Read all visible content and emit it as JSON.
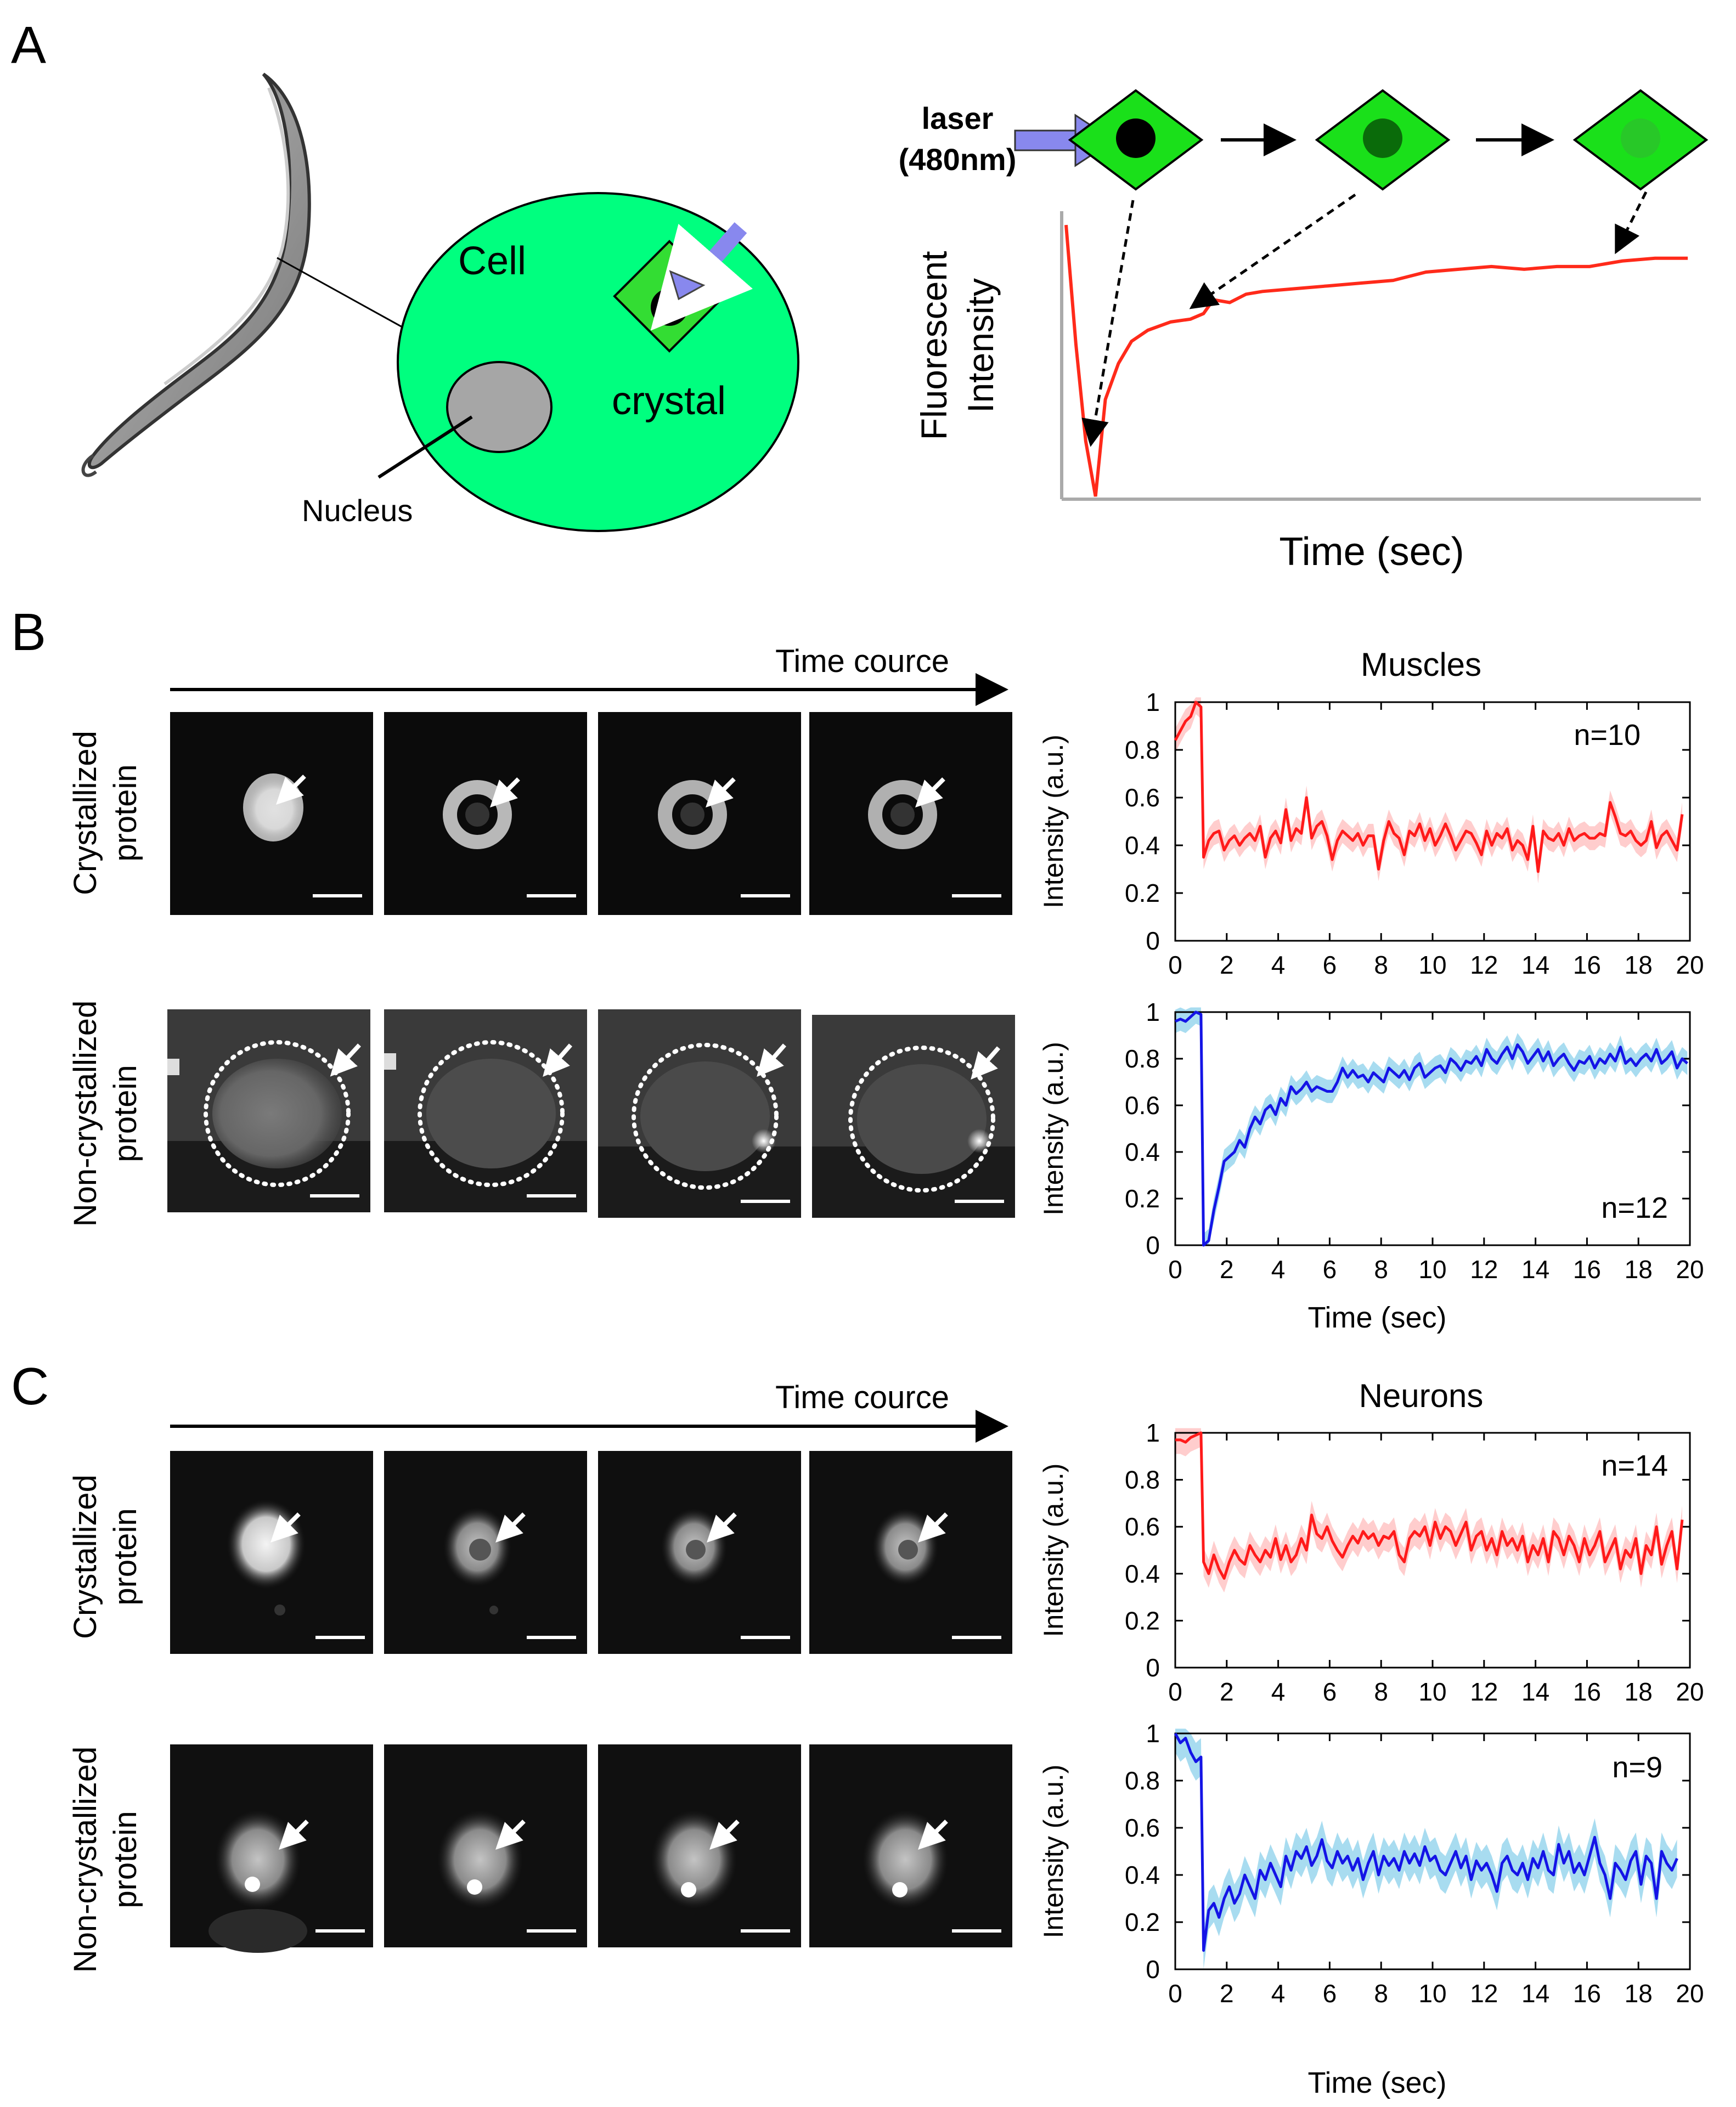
{
  "panel_labels": {
    "a": "A",
    "b": "B",
    "c": "C"
  },
  "panelA": {
    "cell_label": "Cell",
    "crystal_label": "crystal",
    "nucleus_label": "Nucleus",
    "laser_line1": "laser",
    "laser_line2": "(480nm)",
    "ylabel_line1": "Fluorescent",
    "ylabel_line2": "Intensity",
    "xlabel": "Time (sec)",
    "colors": {
      "cell": "#00ff7f",
      "crystal": "#33dd33",
      "dot": "#000000",
      "laser": "#8888ee",
      "nucleus": "#a6a6a6",
      "curve": "#ff2a1a"
    }
  },
  "panelB": {
    "time_course": "Time cource",
    "title": "Muscles",
    "row1_label_line1": "Crystallized",
    "row1_label_line2": "protein",
    "row2_label_line1": "Non-crystallized",
    "row2_label_line2": "protein",
    "xlabel": "Time (sec)"
  },
  "panelC": {
    "time_course": "Time cource",
    "title": "Neurons",
    "row1_label_line1": "Crystallized",
    "row1_label_line2": "protein",
    "row2_label_line1": "Non-crystallized",
    "row2_label_line2": "protein",
    "xlabel": "Time (sec)"
  },
  "chart_data": [
    {
      "id": "A-schematic",
      "type": "line",
      "title": "",
      "xlabel": "Time (sec)",
      "ylabel": "Fluorescent Intensity",
      "x": [
        0,
        0.3,
        0.6,
        0.9,
        1.2,
        1.6,
        2.0,
        2.5,
        3.2,
        3.8,
        4.2,
        4.5,
        5.0,
        5.5,
        6.0,
        7.0,
        8.0,
        9.0,
        10.0,
        11.0,
        12.0,
        13.0,
        14.0,
        15.0,
        16.0,
        17.0,
        18.0,
        19.0
      ],
      "y": [
        0.98,
        0.55,
        0.2,
        0.0,
        0.35,
        0.48,
        0.56,
        0.6,
        0.63,
        0.64,
        0.66,
        0.71,
        0.7,
        0.73,
        0.74,
        0.75,
        0.76,
        0.77,
        0.78,
        0.81,
        0.82,
        0.83,
        0.82,
        0.83,
        0.83,
        0.85,
        0.86,
        0.86
      ],
      "color": "#ff2a1a"
    },
    {
      "id": "B-muscles-crystallized",
      "type": "line",
      "title": "Muscles",
      "ylabel": "Intensity (a.u.)",
      "xlabel": "",
      "xlim": [
        0,
        20
      ],
      "ylim": [
        0,
        1
      ],
      "xticks": [
        "0",
        "2",
        "4",
        "6",
        "8",
        "10",
        "12",
        "14",
        "16",
        "18",
        "20"
      ],
      "yticks": [
        "0",
        "0.2",
        "0.4",
        "0.6",
        "0.8",
        "1"
      ],
      "n_label": "n=10",
      "color": "#ff1a1a",
      "band_color": "#ffc8c8",
      "x": [
        0,
        0.2,
        0.4,
        0.6,
        0.8,
        1.0,
        1.1,
        1.3,
        1.5,
        1.7,
        1.9,
        2.1,
        2.3,
        2.5,
        2.7,
        2.9,
        3.1,
        3.3,
        3.5,
        3.7,
        3.9,
        4.1,
        4.3,
        4.5,
        4.7,
        4.9,
        5.1,
        5.3,
        5.5,
        5.7,
        5.9,
        6.1,
        6.3,
        6.5,
        6.7,
        6.9,
        7.1,
        7.3,
        7.5,
        7.7,
        7.9,
        8.1,
        8.3,
        8.5,
        8.7,
        8.9,
        9.1,
        9.3,
        9.5,
        9.7,
        9.9,
        10.1,
        10.3,
        10.5,
        10.7,
        10.9,
        11.1,
        11.3,
        11.5,
        11.7,
        11.9,
        12.1,
        12.3,
        12.5,
        12.7,
        12.9,
        13.1,
        13.3,
        13.5,
        13.7,
        13.9,
        14.1,
        14.3,
        14.5,
        14.7,
        14.9,
        15.1,
        15.3,
        15.5,
        15.7,
        15.9,
        16.1,
        16.3,
        16.5,
        16.7,
        16.9,
        17.1,
        17.3,
        17.5,
        17.7,
        17.9,
        18.1,
        18.3,
        18.5,
        18.7,
        18.9,
        19.1,
        19.3,
        19.5,
        19.7
      ],
      "y": [
        0.84,
        0.88,
        0.92,
        0.94,
        1.0,
        0.98,
        0.35,
        0.42,
        0.45,
        0.46,
        0.38,
        0.42,
        0.44,
        0.4,
        0.43,
        0.45,
        0.42,
        0.48,
        0.35,
        0.43,
        0.46,
        0.41,
        0.55,
        0.42,
        0.47,
        0.45,
        0.6,
        0.43,
        0.48,
        0.5,
        0.44,
        0.34,
        0.42,
        0.46,
        0.44,
        0.42,
        0.45,
        0.4,
        0.44,
        0.44,
        0.3,
        0.42,
        0.5,
        0.45,
        0.43,
        0.36,
        0.46,
        0.44,
        0.49,
        0.42,
        0.47,
        0.4,
        0.44,
        0.49,
        0.44,
        0.38,
        0.42,
        0.46,
        0.45,
        0.41,
        0.36,
        0.46,
        0.4,
        0.45,
        0.43,
        0.47,
        0.38,
        0.42,
        0.4,
        0.34,
        0.48,
        0.29,
        0.46,
        0.43,
        0.42,
        0.45,
        0.4,
        0.47,
        0.42,
        0.44,
        0.45,
        0.43,
        0.43,
        0.45,
        0.44,
        0.58,
        0.52,
        0.45,
        0.44,
        0.46,
        0.42,
        0.4,
        0.42,
        0.5,
        0.39,
        0.44,
        0.46,
        0.42,
        0.38,
        0.53
      ],
      "band": 0.05
    },
    {
      "id": "B-muscles-noncrystallized",
      "type": "line",
      "title": "",
      "ylabel": "Intensity (a.u.)",
      "xlabel": "Time (sec)",
      "xlim": [
        0,
        20
      ],
      "ylim": [
        0,
        1
      ],
      "xticks": [
        "0",
        "2",
        "4",
        "6",
        "8",
        "10",
        "12",
        "14",
        "16",
        "18",
        "20"
      ],
      "yticks": [
        "0",
        "0.2",
        "0.4",
        "0.6",
        "0.8",
        "1"
      ],
      "n_label": "n=12",
      "color": "#1414e6",
      "band_color": "#9ed8ee",
      "x": [
        0,
        0.2,
        0.4,
        0.6,
        0.8,
        1.0,
        1.1,
        1.3,
        1.5,
        1.7,
        1.9,
        2.1,
        2.3,
        2.5,
        2.7,
        2.9,
        3.1,
        3.3,
        3.5,
        3.7,
        3.9,
        4.1,
        4.3,
        4.5,
        4.7,
        4.9,
        5.1,
        5.3,
        5.5,
        5.7,
        5.9,
        6.1,
        6.3,
        6.5,
        6.7,
        6.9,
        7.1,
        7.3,
        7.5,
        7.7,
        7.9,
        8.1,
        8.3,
        8.5,
        8.7,
        8.9,
        9.1,
        9.3,
        9.5,
        9.7,
        9.9,
        10.1,
        10.3,
        10.5,
        10.7,
        10.9,
        11.1,
        11.3,
        11.5,
        11.7,
        11.9,
        12.1,
        12.3,
        12.5,
        12.7,
        12.9,
        13.1,
        13.3,
        13.5,
        13.7,
        13.9,
        14.1,
        14.3,
        14.5,
        14.7,
        14.9,
        15.1,
        15.3,
        15.5,
        15.7,
        15.9,
        16.1,
        16.3,
        16.5,
        16.7,
        16.9,
        17.1,
        17.3,
        17.5,
        17.7,
        17.9,
        18.1,
        18.3,
        18.5,
        18.7,
        18.9,
        19.1,
        19.3,
        19.5,
        19.7,
        19.9
      ],
      "y": [
        0.96,
        0.97,
        0.96,
        0.98,
        1.0,
        0.99,
        0.0,
        0.02,
        0.15,
        0.25,
        0.36,
        0.38,
        0.4,
        0.45,
        0.42,
        0.5,
        0.55,
        0.52,
        0.58,
        0.6,
        0.56,
        0.63,
        0.6,
        0.68,
        0.65,
        0.67,
        0.7,
        0.66,
        0.68,
        0.67,
        0.66,
        0.66,
        0.7,
        0.76,
        0.72,
        0.75,
        0.72,
        0.73,
        0.7,
        0.74,
        0.72,
        0.7,
        0.76,
        0.74,
        0.72,
        0.75,
        0.71,
        0.76,
        0.78,
        0.72,
        0.74,
        0.76,
        0.77,
        0.74,
        0.8,
        0.78,
        0.75,
        0.79,
        0.78,
        0.81,
        0.77,
        0.84,
        0.8,
        0.78,
        0.82,
        0.85,
        0.8,
        0.86,
        0.83,
        0.78,
        0.81,
        0.84,
        0.79,
        0.83,
        0.77,
        0.8,
        0.82,
        0.78,
        0.75,
        0.79,
        0.78,
        0.81,
        0.76,
        0.8,
        0.78,
        0.82,
        0.79,
        0.85,
        0.78,
        0.8,
        0.77,
        0.8,
        0.82,
        0.79,
        0.84,
        0.78,
        0.8,
        0.83,
        0.76,
        0.8,
        0.78
      ],
      "band": 0.05
    },
    {
      "id": "C-neurons-crystallized",
      "type": "line",
      "title": "Neurons",
      "ylabel": "Intensity (a.u.)",
      "xlabel": "",
      "xlim": [
        0,
        20
      ],
      "ylim": [
        0,
        1
      ],
      "xticks": [
        "0",
        "2",
        "4",
        "6",
        "8",
        "10",
        "12",
        "14",
        "16",
        "18",
        "20"
      ],
      "yticks": [
        "0",
        "0.2",
        "0.4",
        "0.6",
        "0.8",
        "1"
      ],
      "n_label": "n=14",
      "color": "#ff1a1a",
      "band_color": "#ffc8c8",
      "x": [
        0,
        0.2,
        0.4,
        0.6,
        0.8,
        1.0,
        1.1,
        1.3,
        1.5,
        1.7,
        1.9,
        2.1,
        2.3,
        2.5,
        2.7,
        2.9,
        3.1,
        3.3,
        3.5,
        3.7,
        3.9,
        4.1,
        4.3,
        4.5,
        4.7,
        4.9,
        5.1,
        5.3,
        5.5,
        5.7,
        5.9,
        6.1,
        6.3,
        6.5,
        6.7,
        6.9,
        7.1,
        7.3,
        7.5,
        7.7,
        7.9,
        8.1,
        8.3,
        8.5,
        8.7,
        8.9,
        9.1,
        9.3,
        9.5,
        9.7,
        9.9,
        10.1,
        10.3,
        10.5,
        10.7,
        10.9,
        11.1,
        11.3,
        11.5,
        11.7,
        11.9,
        12.1,
        12.3,
        12.5,
        12.7,
        12.9,
        13.1,
        13.3,
        13.5,
        13.7,
        13.9,
        14.1,
        14.3,
        14.5,
        14.7,
        14.9,
        15.1,
        15.3,
        15.5,
        15.7,
        15.9,
        16.1,
        16.3,
        16.5,
        16.7,
        16.9,
        17.1,
        17.3,
        17.5,
        17.7,
        17.9,
        18.1,
        18.3,
        18.5,
        18.7,
        18.9,
        19.1,
        19.3,
        19.5,
        19.7
      ],
      "y": [
        0.97,
        0.97,
        0.96,
        0.98,
        0.99,
        1.0,
        0.45,
        0.4,
        0.48,
        0.42,
        0.38,
        0.45,
        0.5,
        0.46,
        0.44,
        0.52,
        0.48,
        0.45,
        0.5,
        0.47,
        0.55,
        0.46,
        0.52,
        0.45,
        0.48,
        0.55,
        0.5,
        0.65,
        0.57,
        0.55,
        0.6,
        0.54,
        0.5,
        0.47,
        0.52,
        0.56,
        0.53,
        0.58,
        0.55,
        0.57,
        0.52,
        0.56,
        0.55,
        0.58,
        0.48,
        0.45,
        0.55,
        0.58,
        0.56,
        0.6,
        0.52,
        0.62,
        0.55,
        0.6,
        0.58,
        0.52,
        0.57,
        0.62,
        0.5,
        0.56,
        0.58,
        0.5,
        0.55,
        0.48,
        0.58,
        0.52,
        0.55,
        0.5,
        0.56,
        0.45,
        0.52,
        0.48,
        0.55,
        0.45,
        0.58,
        0.55,
        0.48,
        0.56,
        0.52,
        0.45,
        0.55,
        0.48,
        0.52,
        0.58,
        0.45,
        0.5,
        0.55,
        0.42,
        0.5,
        0.47,
        0.55,
        0.4,
        0.52,
        0.48,
        0.6,
        0.44,
        0.52,
        0.58,
        0.42,
        0.63
      ],
      "band": 0.06
    },
    {
      "id": "C-neurons-noncrystallized",
      "type": "line",
      "title": "",
      "ylabel": "Intensity (a.u.)",
      "xlabel": "Time (sec)",
      "xlim": [
        0,
        20
      ],
      "ylim": [
        0,
        1
      ],
      "xticks": [
        "0",
        "2",
        "4",
        "6",
        "8",
        "10",
        "12",
        "14",
        "16",
        "18",
        "20"
      ],
      "yticks": [
        "0",
        "0.2",
        "0.4",
        "0.6",
        "0.8",
        "1"
      ],
      "n_label": "n=9",
      "color": "#1414e6",
      "band_color": "#9ed8ee",
      "x": [
        0,
        0.2,
        0.4,
        0.6,
        0.8,
        1.0,
        1.1,
        1.3,
        1.5,
        1.7,
        1.9,
        2.1,
        2.3,
        2.5,
        2.7,
        2.9,
        3.1,
        3.3,
        3.5,
        3.7,
        3.9,
        4.1,
        4.3,
        4.5,
        4.7,
        4.9,
        5.1,
        5.3,
        5.5,
        5.7,
        5.9,
        6.1,
        6.3,
        6.5,
        6.7,
        6.9,
        7.1,
        7.3,
        7.5,
        7.7,
        7.9,
        8.1,
        8.3,
        8.5,
        8.7,
        8.9,
        9.1,
        9.3,
        9.5,
        9.7,
        9.9,
        10.1,
        10.3,
        10.5,
        10.7,
        10.9,
        11.1,
        11.3,
        11.5,
        11.7,
        11.9,
        12.1,
        12.3,
        12.5,
        12.7,
        12.9,
        13.1,
        13.3,
        13.5,
        13.7,
        13.9,
        14.1,
        14.3,
        14.5,
        14.7,
        14.9,
        15.1,
        15.3,
        15.5,
        15.7,
        15.9,
        16.1,
        16.3,
        16.5,
        16.7,
        16.9,
        17.1,
        17.3,
        17.5,
        17.7,
        17.9,
        18.1,
        18.3,
        18.5,
        18.7,
        18.9,
        19.1,
        19.3,
        19.5
      ],
      "y": [
        1.0,
        0.96,
        0.98,
        0.92,
        0.88,
        0.9,
        0.08,
        0.25,
        0.28,
        0.22,
        0.3,
        0.35,
        0.28,
        0.32,
        0.4,
        0.35,
        0.3,
        0.42,
        0.38,
        0.45,
        0.4,
        0.35,
        0.48,
        0.42,
        0.5,
        0.47,
        0.52,
        0.44,
        0.48,
        0.55,
        0.46,
        0.43,
        0.5,
        0.45,
        0.48,
        0.42,
        0.47,
        0.38,
        0.45,
        0.5,
        0.4,
        0.48,
        0.44,
        0.47,
        0.42,
        0.5,
        0.45,
        0.49,
        0.44,
        0.52,
        0.46,
        0.48,
        0.42,
        0.4,
        0.45,
        0.5,
        0.43,
        0.48,
        0.38,
        0.46,
        0.42,
        0.45,
        0.4,
        0.33,
        0.45,
        0.48,
        0.42,
        0.4,
        0.45,
        0.38,
        0.47,
        0.43,
        0.5,
        0.42,
        0.4,
        0.53,
        0.45,
        0.5,
        0.41,
        0.45,
        0.4,
        0.48,
        0.56,
        0.45,
        0.4,
        0.3,
        0.45,
        0.42,
        0.38,
        0.46,
        0.5,
        0.36,
        0.48,
        0.45,
        0.3,
        0.5,
        0.45,
        0.42,
        0.47
      ],
      "band": 0.08
    }
  ]
}
